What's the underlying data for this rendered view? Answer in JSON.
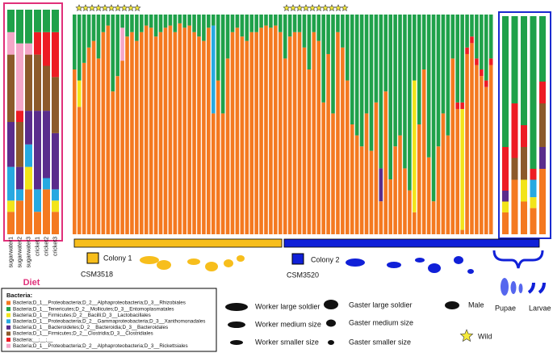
{
  "chart_data": {
    "type": "bar",
    "stacked": true,
    "categories": [
      "sugarwater1",
      "sugarwater2",
      "sugarwater3",
      "cricket1",
      "cricket2",
      "cricket3",
      null,
      null,
      null,
      null,
      null,
      null,
      null,
      null,
      null,
      null,
      null,
      null,
      null,
      null,
      null,
      null,
      null,
      null,
      null,
      null,
      null,
      null,
      null,
      null,
      null,
      null,
      null,
      null,
      null,
      null,
      null,
      null,
      null,
      null,
      null,
      null,
      null,
      null,
      null,
      null,
      null,
      null,
      null,
      null,
      null,
      null,
      null,
      null,
      null,
      null,
      null,
      null,
      null,
      null,
      null,
      null,
      null,
      null,
      null,
      null,
      null,
      null,
      null,
      null,
      null,
      null,
      null,
      null,
      null,
      null,
      null,
      null,
      null,
      null,
      null,
      null,
      null,
      null,
      null,
      null,
      null,
      null,
      null,
      null,
      null,
      null,
      null,
      null,
      null,
      null,
      null,
      null,
      null
    ],
    "ylim": [
      0,
      100
    ],
    "legend_title": "Bacteria:",
    "series": [
      {
        "name": "Bacteria;D_1__Proteobacteria;D_2__Alphaproteobacteria;D_3__Rhizobiales",
        "color": "#f47920",
        "values": [
          10,
          15,
          20,
          10,
          20,
          10,
          75,
          58,
          78,
          85,
          88,
          80,
          92,
          95,
          65,
          72,
          79,
          90,
          92,
          88,
          92,
          95,
          94,
          90,
          92,
          94,
          95,
          92,
          96,
          94,
          95,
          92,
          90,
          88,
          94,
          55,
          70,
          55,
          80,
          92,
          94,
          90,
          88,
          92,
          92,
          94,
          95,
          94,
          95,
          92,
          80,
          90,
          92,
          92,
          85,
          75,
          92,
          88,
          60,
          82,
          55,
          92,
          85,
          70,
          50,
          45,
          40,
          55,
          38,
          60,
          15,
          65,
          25,
          40,
          45,
          30,
          20,
          10,
          50,
          75,
          35,
          15,
          40,
          55,
          45,
          80,
          57,
          2,
          82,
          87,
          77,
          72,
          67,
          77,
          10,
          25,
          15,
          12,
          30
        ]
      },
      {
        "name": "Bacteria;D_1__Tenericutes;D_2__Mollicutes;D_3__Entomoplasmatales",
        "color": "#1fa14a",
        "values": [
          10,
          15,
          15,
          10,
          10,
          10,
          25,
          30,
          22,
          15,
          12,
          20,
          8,
          5,
          35,
          28,
          6,
          10,
          8,
          12,
          8,
          5,
          6,
          10,
          8,
          6,
          5,
          8,
          4,
          6,
          5,
          8,
          10,
          12,
          6,
          5,
          30,
          45,
          20,
          8,
          6,
          10,
          12,
          8,
          8,
          6,
          5,
          6,
          5,
          8,
          20,
          10,
          8,
          8,
          15,
          25,
          8,
          12,
          40,
          18,
          45,
          8,
          15,
          30,
          50,
          55,
          60,
          45,
          62,
          40,
          70,
          35,
          75,
          60,
          55,
          70,
          80,
          30,
          50,
          25,
          65,
          85,
          60,
          45,
          55,
          20,
          40,
          40,
          15,
          10,
          20,
          25,
          30,
          20,
          60,
          40,
          50,
          70,
          30
        ]
      },
      {
        "name": "Bacteria;D_1__Firmicutes;D_2__Bacilli;D_3__Lactobacillales",
        "color": "#f2e41a",
        "values": [
          5,
          0,
          10,
          0,
          0,
          5,
          0,
          12,
          0,
          0,
          0,
          0,
          0,
          0,
          0,
          0,
          0,
          0,
          0,
          0,
          0,
          0,
          0,
          0,
          0,
          0,
          0,
          0,
          0,
          0,
          0,
          0,
          0,
          0,
          0,
          0,
          0,
          0,
          0,
          0,
          0,
          0,
          0,
          0,
          0,
          0,
          0,
          0,
          0,
          0,
          0,
          0,
          0,
          0,
          0,
          0,
          0,
          0,
          0,
          0,
          0,
          0,
          0,
          0,
          0,
          0,
          0,
          0,
          0,
          0,
          0,
          0,
          0,
          0,
          0,
          0,
          0,
          60,
          0,
          0,
          0,
          0,
          0,
          0,
          0,
          0,
          0,
          55,
          0,
          0,
          0,
          0,
          0,
          0,
          5,
          0,
          10,
          5,
          0
        ]
      },
      {
        "name": "Bacteria;D_1__Proteobacteria;D_2__Gammaproteobacteria;D_3__Xanthomonadales",
        "color": "#27a9e1",
        "values": [
          15,
          5,
          10,
          10,
          5,
          5,
          0,
          0,
          0,
          0,
          0,
          0,
          0,
          0,
          0,
          0,
          0,
          0,
          0,
          0,
          0,
          0,
          0,
          0,
          0,
          0,
          0,
          0,
          0,
          0,
          0,
          0,
          0,
          0,
          0,
          40,
          0,
          0,
          0,
          0,
          0,
          0,
          0,
          0,
          0,
          0,
          0,
          0,
          0,
          0,
          0,
          0,
          0,
          0,
          0,
          0,
          0,
          0,
          0,
          0,
          0,
          0,
          0,
          0,
          0,
          0,
          0,
          0,
          0,
          0,
          0,
          0,
          0,
          0,
          0,
          0,
          0,
          0,
          0,
          0,
          0,
          0,
          0,
          0,
          0,
          0,
          0,
          0,
          0,
          0,
          0,
          0,
          0,
          0,
          0,
          0,
          0,
          8,
          0
        ]
      },
      {
        "name": "Bacteria;D_1__Bacteroidetes;D_2__Bacteroidia;D_3__Bacteroidales",
        "color": "#5a2d8c",
        "values": [
          20,
          10,
          15,
          35,
          30,
          25,
          0,
          0,
          0,
          0,
          0,
          0,
          0,
          0,
          0,
          0,
          0,
          0,
          0,
          0,
          0,
          0,
          0,
          0,
          0,
          0,
          0,
          0,
          0,
          0,
          0,
          0,
          0,
          0,
          0,
          0,
          0,
          0,
          0,
          0,
          0,
          0,
          0,
          0,
          0,
          0,
          0,
          0,
          0,
          0,
          0,
          0,
          0,
          0,
          0,
          0,
          0,
          0,
          0,
          0,
          0,
          0,
          0,
          0,
          0,
          0,
          0,
          0,
          0,
          0,
          15,
          0,
          0,
          0,
          0,
          0,
          0,
          0,
          0,
          0,
          0,
          0,
          0,
          0,
          0,
          0,
          0,
          0,
          0,
          0,
          0,
          0,
          0,
          0,
          5,
          0,
          0,
          0,
          10
        ]
      },
      {
        "name": "Bacteria;D_1__Firmicutes;D_2__Clostridia;D_3__Clostridiales",
        "color": "#8c5a2b",
        "values": [
          30,
          20,
          25,
          25,
          20,
          25,
          0,
          0,
          0,
          0,
          0,
          0,
          0,
          0,
          0,
          0,
          0,
          0,
          0,
          0,
          0,
          0,
          0,
          0,
          0,
          0,
          0,
          0,
          0,
          0,
          0,
          0,
          0,
          0,
          0,
          0,
          0,
          0,
          0,
          0,
          0,
          0,
          0,
          0,
          0,
          0,
          0,
          0,
          0,
          0,
          0,
          0,
          0,
          0,
          0,
          0,
          0,
          0,
          0,
          0,
          0,
          0,
          0,
          0,
          0,
          0,
          0,
          0,
          0,
          0,
          0,
          0,
          0,
          0,
          0,
          0,
          0,
          0,
          0,
          0,
          0,
          0,
          0,
          0,
          0,
          0,
          0,
          0,
          0,
          0,
          0,
          0,
          0,
          0,
          0,
          10,
          15,
          0,
          20
        ]
      },
      {
        "name": "Bacteria;__;__;__",
        "color": "#ed1c24",
        "values": [
          0,
          5,
          0,
          10,
          15,
          20,
          0,
          0,
          0,
          0,
          0,
          0,
          0,
          0,
          0,
          0,
          0,
          0,
          0,
          0,
          0,
          0,
          0,
          0,
          0,
          0,
          0,
          0,
          0,
          0,
          0,
          0,
          0,
          0,
          0,
          0,
          0,
          0,
          0,
          0,
          0,
          0,
          0,
          0,
          0,
          0,
          0,
          0,
          0,
          0,
          0,
          0,
          0,
          0,
          0,
          0,
          0,
          0,
          0,
          0,
          0,
          0,
          0,
          0,
          0,
          0,
          0,
          0,
          0,
          0,
          0,
          0,
          0,
          0,
          0,
          0,
          0,
          0,
          0,
          0,
          0,
          0,
          0,
          0,
          0,
          0,
          3,
          3,
          3,
          3,
          3,
          3,
          3,
          3,
          20,
          25,
          10,
          5,
          10
        ]
      },
      {
        "name": "Bacteria;D_1__Proteobacteria;D_2__Alphaproteobacteria;D_3__Rickettsiales",
        "color": "#f4a6c8",
        "values": [
          10,
          30,
          5,
          0,
          0,
          0,
          0,
          0,
          0,
          0,
          0,
          0,
          0,
          0,
          0,
          0,
          15,
          0,
          0,
          0,
          0,
          0,
          0,
          0,
          0,
          0,
          0,
          0,
          0,
          0,
          0,
          0,
          0,
          0,
          0,
          0,
          0,
          0,
          0,
          0,
          0,
          0,
          0,
          0,
          0,
          0,
          0,
          0,
          0,
          0,
          0,
          0,
          0,
          0,
          0,
          0,
          0,
          0,
          0,
          0,
          0,
          0,
          0,
          0,
          0,
          0,
          0,
          0,
          0,
          0,
          0,
          0,
          0,
          0,
          0,
          0,
          0,
          0,
          0,
          0,
          0,
          0,
          0,
          0,
          0,
          0,
          0,
          0,
          0,
          0,
          0,
          0,
          0,
          0,
          0,
          0,
          0,
          0,
          0
        ]
      }
    ],
    "annotations": [
      "Diet",
      "Colony 1",
      "CSM3518",
      "Colony 2",
      "CSM3520",
      "Pupae",
      "Larvae",
      "Worker large soldier",
      "Worker medium size",
      "Worker smaller size",
      "Gaster large soldier",
      "Gaster medium size",
      "Gaster smaller size",
      "Male",
      "Wild"
    ]
  }
}
